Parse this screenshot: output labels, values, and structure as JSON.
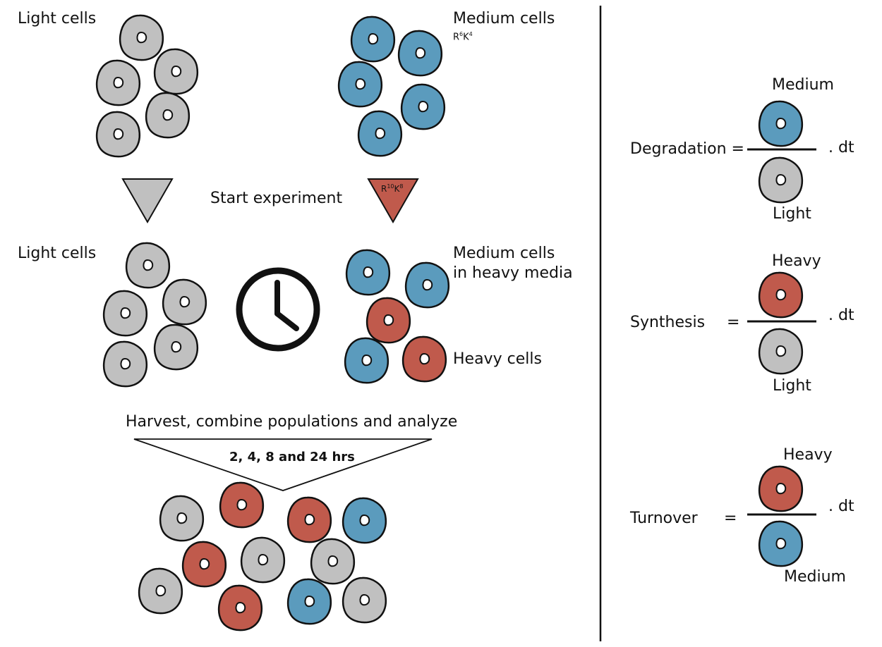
{
  "colors": {
    "light": "#c0c0c0",
    "medium": "#5b9bbd",
    "heavy": "#c05a4c",
    "outline": "#111111"
  },
  "labels": {
    "light_cells_top": "Light cells",
    "medium_cells_top": "Medium cells",
    "medium_isotope_r": "R",
    "medium_isotope_r_sup": "6",
    "medium_isotope_k": "K",
    "medium_isotope_k_sup": "4",
    "start_experiment": "Start experiment",
    "heavy_isotope_r": "R",
    "heavy_isotope_r_sup": "10",
    "heavy_isotope_k": "K",
    "heavy_isotope_k_sup": "8",
    "light_cells_mid": "Light cells",
    "medium_heavy_line1": "Medium cells",
    "medium_heavy_line2": "in heavy media",
    "heavy_cells": "Heavy cells",
    "harvest": "Harvest, combine populations and analyze",
    "timepoints": "2, 4, 8 and 24 hrs"
  },
  "formulas": [
    {
      "name": "Degradation =",
      "numerator": "Medium",
      "denominator": "Light",
      "suffix": ". dt",
      "num_type": "medium",
      "den_type": "light"
    },
    {
      "name": "Synthesis",
      "eq": "=",
      "numerator": "Heavy",
      "denominator": "Light",
      "suffix": ". dt",
      "num_type": "heavy",
      "den_type": "light"
    },
    {
      "name": "Turnover",
      "eq": "=",
      "numerator": "Heavy",
      "denominator": "Medium",
      "suffix": ". dt",
      "num_type": "heavy",
      "den_type": "medium"
    }
  ],
  "cell_groups": {
    "light_top": [
      "light",
      "light",
      "light",
      "light",
      "light"
    ],
    "medium_top": [
      "medium",
      "medium",
      "medium",
      "medium",
      "medium"
    ],
    "light_mid": [
      "light",
      "light",
      "light",
      "light",
      "light"
    ],
    "medium_heavy_mid": [
      "medium",
      "medium",
      "heavy",
      "medium",
      "heavy"
    ],
    "combined": [
      "light",
      "heavy",
      "heavy",
      "medium",
      "heavy",
      "light",
      "light",
      "light",
      "heavy",
      "medium",
      "light"
    ]
  }
}
